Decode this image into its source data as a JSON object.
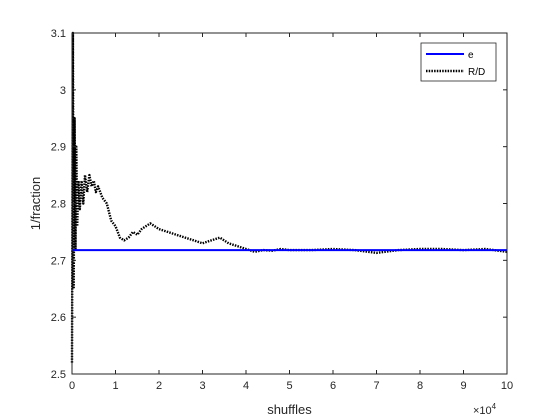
{
  "chart_data": {
    "type": "line",
    "xlabel": "shuffles",
    "ylabel": "1/fraction",
    "x_exponent_label": "×10",
    "x_exponent_power": "4",
    "xlim": [
      0,
      10
    ],
    "ylim": [
      2.5,
      3.1
    ],
    "x_ticks": [
      0,
      1,
      2,
      3,
      4,
      5,
      6,
      7,
      8,
      9,
      10
    ],
    "y_ticks": [
      2.5,
      2.6,
      2.7,
      2.8,
      2.9,
      3.0,
      3.1
    ],
    "x_tick_labels": [
      "0",
      "1",
      "2",
      "3",
      "4",
      "5",
      "6",
      "7",
      "8",
      "9",
      "10"
    ],
    "y_tick_labels": [
      "2.5",
      "2.6",
      "2.7",
      "2.8",
      "2.9",
      "3",
      "3.1"
    ],
    "grid": false,
    "legend_position": "top-right",
    "series": [
      {
        "name": "e",
        "style": "solid",
        "color": "#0000ff",
        "x": [
          0,
          10
        ],
        "y": [
          2.718,
          2.718
        ]
      },
      {
        "name": "R/D",
        "style": "dotted",
        "color": "#000000",
        "x": [
          0.0,
          0.02,
          0.04,
          0.06,
          0.08,
          0.1,
          0.12,
          0.15,
          0.18,
          0.22,
          0.26,
          0.3,
          0.35,
          0.4,
          0.45,
          0.5,
          0.55,
          0.6,
          0.7,
          0.8,
          0.9,
          1.0,
          1.1,
          1.2,
          1.3,
          1.4,
          1.5,
          1.6,
          1.7,
          1.8,
          1.9,
          2.0,
          2.2,
          2.4,
          2.6,
          2.8,
          3.0,
          3.2,
          3.4,
          3.6,
          3.8,
          4.0,
          4.2,
          4.4,
          4.6,
          4.8,
          5.0,
          5.5,
          6.0,
          6.5,
          7.0,
          7.5,
          8.0,
          8.5,
          9.0,
          9.5,
          10.0
        ],
        "y": [
          2.52,
          3.1,
          2.65,
          2.95,
          2.72,
          2.9,
          2.76,
          2.84,
          2.79,
          2.84,
          2.8,
          2.85,
          2.82,
          2.85,
          2.83,
          2.84,
          2.82,
          2.83,
          2.81,
          2.8,
          2.77,
          2.76,
          2.74,
          2.735,
          2.74,
          2.75,
          2.745,
          2.755,
          2.76,
          2.765,
          2.76,
          2.755,
          2.75,
          2.745,
          2.74,
          2.735,
          2.73,
          2.735,
          2.74,
          2.73,
          2.725,
          2.72,
          2.715,
          2.718,
          2.717,
          2.72,
          2.718,
          2.718,
          2.72,
          2.718,
          2.713,
          2.718,
          2.72,
          2.72,
          2.718,
          2.72,
          2.715
        ]
      }
    ]
  }
}
